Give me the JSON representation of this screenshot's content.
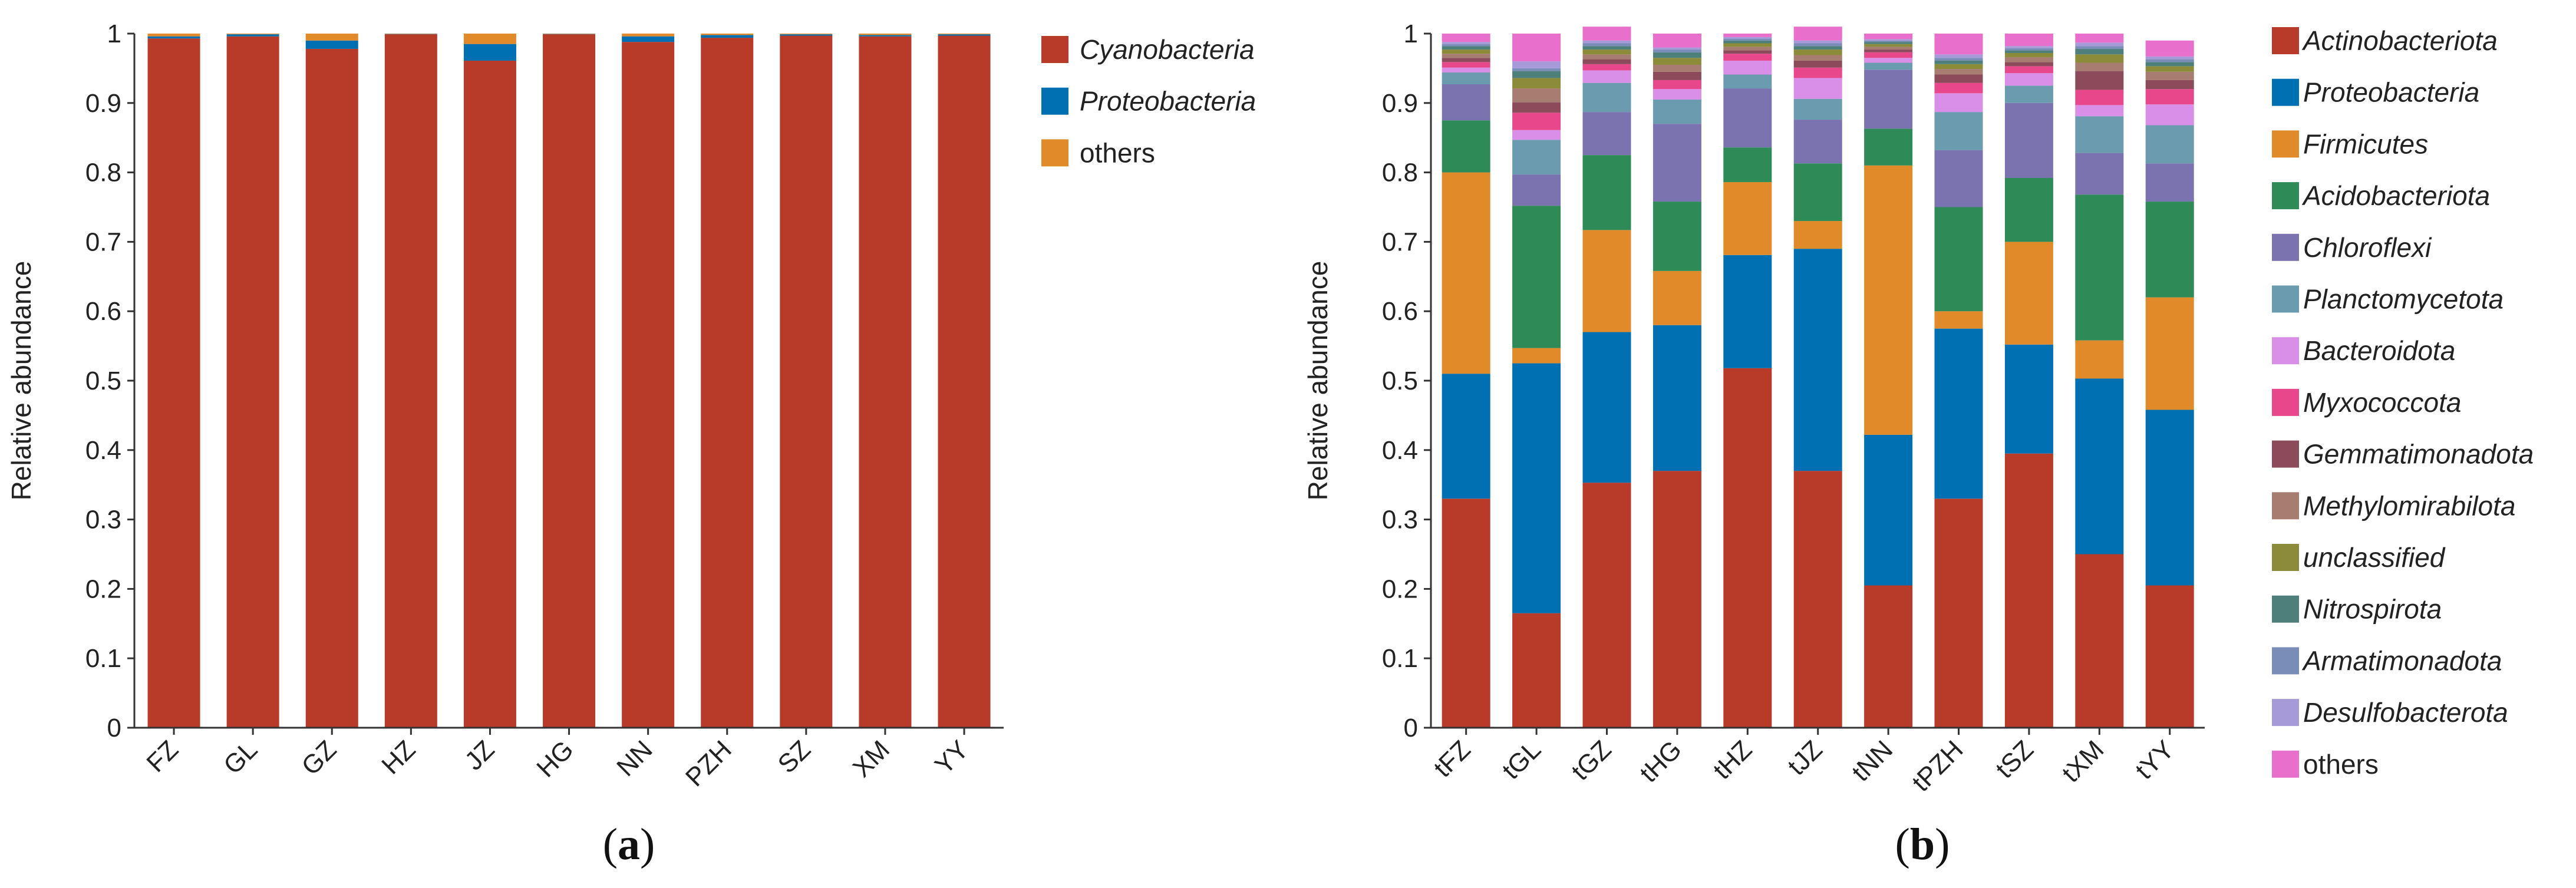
{
  "chart_data": [
    {
      "type": "bar",
      "stacked": true,
      "panel": "a",
      "categories": [
        "FZ",
        "GL",
        "GZ",
        "HZ",
        "JZ",
        "HG",
        "NN",
        "PZH",
        "SZ",
        "XM",
        "YY"
      ],
      "ylabel": "Relative abundance",
      "xlabel": "",
      "ylim": [
        0,
        1
      ],
      "yticks": [
        "0",
        "0.1",
        "0.2",
        "0.3",
        "0.4",
        "0.5",
        "0.6",
        "0.7",
        "0.8",
        "0.9",
        "1"
      ],
      "series": [
        {
          "name": "Cyanobacteria",
          "italic": true,
          "color": "#B83A28",
          "values": [
            0.993,
            0.996,
            0.978,
            0.999,
            0.961,
            0.999,
            0.988,
            0.994,
            0.997,
            0.996,
            0.997
          ]
        },
        {
          "name": "Proteobacteria",
          "italic": true,
          "color": "#0070B2",
          "values": [
            0.003,
            0.003,
            0.012,
            0.0005,
            0.024,
            0.0005,
            0.008,
            0.004,
            0.002,
            0.002,
            0.002
          ]
        },
        {
          "name": "others",
          "italic": false,
          "color": "#E08A2A",
          "values": [
            0.004,
            0.001,
            0.01,
            0.0005,
            0.015,
            0.0005,
            0.004,
            0.002,
            0.001,
            0.002,
            0.001
          ]
        }
      ]
    },
    {
      "type": "bar",
      "stacked": true,
      "panel": "b",
      "categories": [
        "tFZ",
        "tGL",
        "tGZ",
        "tHG",
        "tHZ",
        "tJZ",
        "tNN",
        "tPZH",
        "tSZ",
        "tXM",
        "tYY"
      ],
      "ylabel": "Relative abundance",
      "xlabel": "",
      "ylim": [
        0,
        1
      ],
      "yticks": [
        "0",
        "0.1",
        "0.2",
        "0.3",
        "0.4",
        "0.5",
        "0.6",
        "0.7",
        "0.8",
        "0.9",
        "1"
      ],
      "series": [
        {
          "name": "Actinobacteriota",
          "italic": true,
          "color": "#B83A28",
          "values": [
            0.33,
            0.165,
            0.353,
            0.37,
            0.518,
            0.37,
            0.205,
            0.33,
            0.395,
            0.25,
            0.205
          ]
        },
        {
          "name": "Proteobacteria",
          "italic": true,
          "color": "#0070B2",
          "values": [
            0.18,
            0.36,
            0.217,
            0.21,
            0.163,
            0.32,
            0.217,
            0.245,
            0.157,
            0.253,
            0.253
          ]
        },
        {
          "name": "Firmicutes",
          "italic": true,
          "color": "#E08A2A",
          "values": [
            0.29,
            0.022,
            0.147,
            0.078,
            0.105,
            0.04,
            0.388,
            0.025,
            0.148,
            0.055,
            0.162
          ]
        },
        {
          "name": "Acidobacteriota",
          "italic": true,
          "color": "#2E8B57",
          "values": [
            0.075,
            0.205,
            0.108,
            0.1,
            0.05,
            0.083,
            0.053,
            0.15,
            0.092,
            0.21,
            0.138
          ]
        },
        {
          "name": "Chloroflexi",
          "italic": true,
          "color": "#7B72B0",
          "values": [
            0.052,
            0.045,
            0.062,
            0.112,
            0.085,
            0.063,
            0.085,
            0.082,
            0.108,
            0.06,
            0.055
          ]
        },
        {
          "name": "Planctomycetota",
          "italic": true,
          "color": "#6A9BAE",
          "values": [
            0.017,
            0.05,
            0.042,
            0.035,
            0.02,
            0.03,
            0.01,
            0.055,
            0.025,
            0.053,
            0.055
          ]
        },
        {
          "name": "Bacteroidota",
          "italic": true,
          "color": "#D98FE8",
          "values": [
            0.007,
            0.014,
            0.018,
            0.015,
            0.02,
            0.03,
            0.007,
            0.027,
            0.018,
            0.016,
            0.03
          ]
        },
        {
          "name": "Myxococcota",
          "italic": true,
          "color": "#E8478C",
          "values": [
            0.008,
            0.025,
            0.009,
            0.013,
            0.01,
            0.015,
            0.008,
            0.015,
            0.01,
            0.022,
            0.022
          ]
        },
        {
          "name": "Gemmatimonadota",
          "italic": true,
          "color": "#8C4B5B",
          "values": [
            0.006,
            0.015,
            0.007,
            0.012,
            0.005,
            0.01,
            0.004,
            0.012,
            0.006,
            0.027,
            0.013
          ]
        },
        {
          "name": "Methylomirabilota",
          "italic": true,
          "color": "#A77D72",
          "values": [
            0.006,
            0.02,
            0.007,
            0.01,
            0.005,
            0.008,
            0.004,
            0.008,
            0.007,
            0.012,
            0.012
          ]
        },
        {
          "name": "unclassified",
          "italic": true,
          "color": "#8B8B3A",
          "values": [
            0.006,
            0.015,
            0.007,
            0.01,
            0.005,
            0.008,
            0.004,
            0.007,
            0.006,
            0.012,
            0.008
          ]
        },
        {
          "name": "Nitrospirota",
          "italic": true,
          "color": "#4E7F7A",
          "values": [
            0.005,
            0.01,
            0.005,
            0.008,
            0.004,
            0.005,
            0.003,
            0.005,
            0.004,
            0.008,
            0.006
          ]
        },
        {
          "name": "Armatimonadota",
          "italic": true,
          "color": "#7A8CB8",
          "values": [
            0.003,
            0.004,
            0.004,
            0.004,
            0.003,
            0.004,
            0.002,
            0.004,
            0.003,
            0.004,
            0.004
          ]
        },
        {
          "name": "Desulfobacterota",
          "italic": true,
          "color": "#A79AD9",
          "values": [
            0.003,
            0.01,
            0.004,
            0.003,
            0.002,
            0.004,
            0.002,
            0.005,
            0.003,
            0.005,
            0.004
          ]
        },
        {
          "name": "others",
          "italic": false,
          "color": "#E86FCB",
          "values": [
            0.012,
            0.04,
            0.02,
            0.02,
            0.005,
            0.02,
            0.008,
            0.03,
            0.018,
            0.013,
            0.023
          ]
        }
      ]
    }
  ],
  "panel_labels": {
    "a": {
      "open": "(",
      "letter": "a",
      "close": ")"
    },
    "b": {
      "open": "(",
      "letter": "b",
      "close": ")"
    }
  }
}
